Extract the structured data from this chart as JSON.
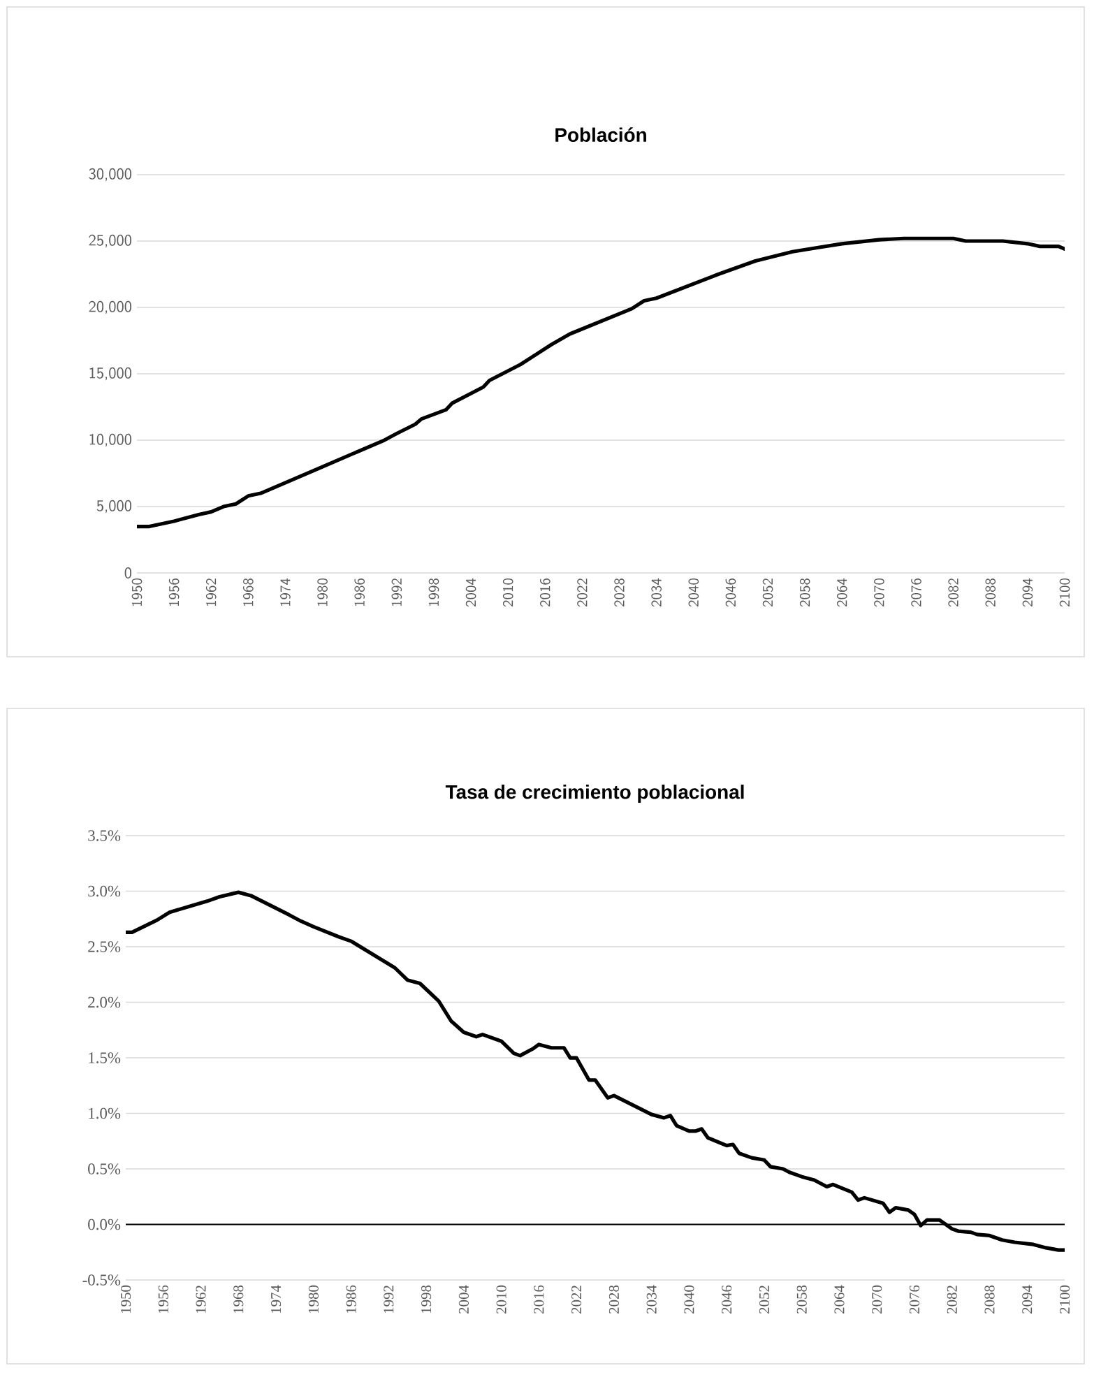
{
  "chart_data": [
    {
      "type": "line",
      "title": "Población",
      "grid": "y",
      "xlim": [
        1950,
        2100
      ],
      "ylim": [
        0,
        30000
      ],
      "xticks": [
        1950,
        1956,
        1962,
        1968,
        1974,
        1980,
        1986,
        1992,
        1998,
        2004,
        2010,
        2016,
        2022,
        2028,
        2034,
        2040,
        2046,
        2052,
        2058,
        2064,
        2070,
        2076,
        2082,
        2088,
        2094,
        2100
      ],
      "yticks": [
        0,
        {
          "value": 5000,
          "label": "5,000"
        },
        {
          "value": 10000,
          "label": "10,000"
        },
        {
          "value": 15000,
          "label": "15,000"
        },
        {
          "value": 20000,
          "label": "20,000"
        },
        {
          "value": 25000,
          "label": "25,000"
        },
        {
          "value": 30000,
          "label": "30,000"
        }
      ],
      "series": [
        {
          "color": "#000000",
          "x": [
            1950,
            1952,
            1956,
            1960,
            1962,
            1964,
            1966,
            1968,
            1970,
            1980,
            1990,
            1992,
            1995,
            1996,
            2000,
            2001,
            2006,
            2007,
            2012,
            2014,
            2017,
            2020,
            2030,
            2032,
            2034,
            2044,
            2050,
            2056,
            2060,
            2064,
            2070,
            2074,
            2082,
            2084,
            2090,
            2094,
            2096,
            2099,
            2100
          ],
          "values": [
            3500,
            3500,
            3900,
            4400,
            4600,
            5000,
            5200,
            5800,
            6000,
            8000,
            10000,
            10500,
            11200,
            11600,
            12300,
            12800,
            14000,
            14500,
            15700,
            16300,
            17200,
            18000,
            19900,
            20500,
            20700,
            22500,
            23500,
            24200,
            24500,
            24800,
            25100,
            25200,
            25200,
            25000,
            25000,
            24800,
            24600,
            24600,
            24400
          ]
        }
      ]
    },
    {
      "type": "line",
      "title": "Tasa de crecimiento poblacional",
      "grid": "y",
      "xlim": [
        1950,
        2100
      ],
      "ylim": [
        -0.5,
        3.5
      ],
      "xticks": [
        1950,
        1956,
        1962,
        1968,
        1974,
        1980,
        1986,
        1992,
        1998,
        2004,
        2010,
        2016,
        2022,
        2028,
        2034,
        2040,
        2046,
        2052,
        2058,
        2064,
        2070,
        2076,
        2082,
        2088,
        2094,
        2100
      ],
      "yticks": [
        {
          "value": -0.5,
          "label": "-0.5%"
        },
        {
          "value": 0,
          "label": "0.0%"
        },
        {
          "value": 0.5,
          "label": "0.5%"
        },
        {
          "value": 1,
          "label": "1.0%"
        },
        {
          "value": 1.5,
          "label": "1.5%"
        },
        {
          "value": 2,
          "label": "2.0%"
        },
        {
          "value": 2.5,
          "label": "2.5%"
        },
        {
          "value": 3,
          "label": "3.0%"
        },
        {
          "value": 3.5,
          "label": "3.5%"
        }
      ],
      "ref_lines": [
        {
          "axis": "y",
          "value": 0,
          "color": "#000000"
        }
      ],
      "series": [
        {
          "color": "#000000",
          "x": [
            1950,
            1951,
            1955,
            1957,
            1960,
            1963,
            1965,
            1968,
            1970,
            1976,
            1978,
            1980,
            1984,
            1986,
            1993,
            1995,
            1997,
            2000,
            2002,
            2004,
            2006,
            2007,
            2010,
            2012,
            2013,
            2015,
            2016,
            2018,
            2020,
            2021,
            2022,
            2024,
            2025,
            2027,
            2028,
            2034,
            2036,
            2037,
            2038,
            2040,
            2041,
            2042,
            2043,
            2046,
            2047,
            2048,
            2050,
            2052,
            2053,
            2055,
            2056,
            2058,
            2060,
            2062,
            2063,
            2066,
            2067,
            2068,
            2071,
            2072,
            2073,
            2075,
            2076,
            2077,
            2078,
            2080,
            2082,
            2083,
            2085,
            2086,
            2088,
            2090,
            2092,
            2095,
            2097,
            2099,
            2100
          ],
          "values": [
            2.63,
            2.63,
            2.74,
            2.81,
            2.86,
            2.91,
            2.95,
            2.99,
            2.96,
            2.79,
            2.73,
            2.68,
            2.59,
            2.55,
            2.31,
            2.2,
            2.17,
            2.01,
            1.83,
            1.73,
            1.69,
            1.71,
            1.65,
            1.54,
            1.52,
            1.58,
            1.62,
            1.59,
            1.59,
            1.5,
            1.5,
            1.3,
            1.3,
            1.14,
            1.16,
            0.99,
            0.96,
            0.98,
            0.89,
            0.84,
            0.84,
            0.86,
            0.78,
            0.71,
            0.72,
            0.64,
            0.6,
            0.58,
            0.52,
            0.5,
            0.47,
            0.43,
            0.4,
            0.34,
            0.36,
            0.29,
            0.22,
            0.24,
            0.19,
            0.11,
            0.15,
            0.13,
            0.09,
            -0.01,
            0.04,
            0.04,
            -0.04,
            -0.06,
            -0.07,
            -0.09,
            -0.1,
            -0.14,
            -0.16,
            -0.18,
            -0.21,
            -0.23,
            -0.23
          ]
        }
      ]
    }
  ]
}
